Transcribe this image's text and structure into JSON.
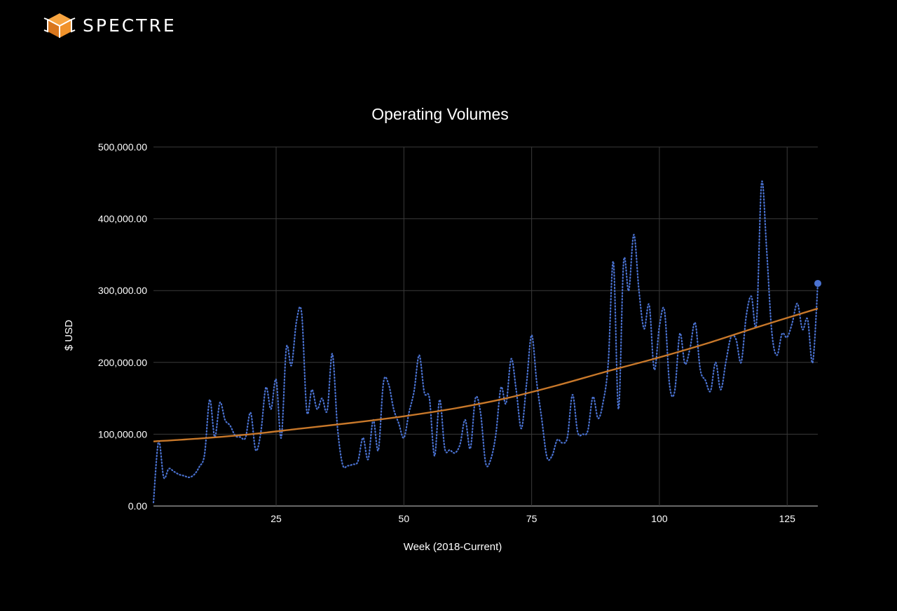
{
  "brand": {
    "name": "SPECTRE",
    "logo_icon": "spectre-cube-logo-icon",
    "logo_color": "#f0922b"
  },
  "colors": {
    "background": "#000000",
    "grid": "#3a3a3a",
    "text": "#ffffff",
    "series_weekly": "#4a72d1",
    "series_trend": "#c8782a"
  },
  "chart_data": {
    "type": "line",
    "title": "Operating Volumes",
    "xlabel": "Week (2018-Current)",
    "ylabel": "$ USD",
    "xlim": [
      1,
      131
    ],
    "ylim": [
      0,
      500000
    ],
    "x_ticks": [
      "25",
      "50",
      "75",
      "100",
      "125"
    ],
    "x_tick_values": [
      25,
      50,
      75,
      100,
      125
    ],
    "y_ticks": [
      "0.00",
      "100,000.00",
      "200,000.00",
      "300,000.00",
      "400,000.00",
      "500,000.00"
    ],
    "y_tick_values": [
      0,
      100000,
      200000,
      300000,
      400000,
      500000
    ],
    "grid": true,
    "legend": "none",
    "series": [
      {
        "style": "dotted",
        "points": [
          [
            1,
            5000
          ],
          [
            2,
            90000
          ],
          [
            3,
            40000
          ],
          [
            4,
            52000
          ],
          [
            5,
            48000
          ],
          [
            6,
            44000
          ],
          [
            7,
            42000
          ],
          [
            8,
            40000
          ],
          [
            9,
            44000
          ],
          [
            10,
            55000
          ],
          [
            11,
            72000
          ],
          [
            12,
            148000
          ],
          [
            13,
            96000
          ],
          [
            14,
            144000
          ],
          [
            15,
            120000
          ],
          [
            16,
            112000
          ],
          [
            17,
            98000
          ],
          [
            18,
            96000
          ],
          [
            19,
            95000
          ],
          [
            20,
            130000
          ],
          [
            21,
            78000
          ],
          [
            22,
            102000
          ],
          [
            23,
            165000
          ],
          [
            24,
            135000
          ],
          [
            25,
            176000
          ],
          [
            26,
            95000
          ],
          [
            27,
            220000
          ],
          [
            28,
            196000
          ],
          [
            29,
            258000
          ],
          [
            30,
            268000
          ],
          [
            31,
            132000
          ],
          [
            32,
            162000
          ],
          [
            33,
            135000
          ],
          [
            34,
            150000
          ],
          [
            35,
            133000
          ],
          [
            36,
            212000
          ],
          [
            37,
            110000
          ],
          [
            38,
            58000
          ],
          [
            39,
            56000
          ],
          [
            40,
            58000
          ],
          [
            41,
            62000
          ],
          [
            42,
            95000
          ],
          [
            43,
            65000
          ],
          [
            44,
            120000
          ],
          [
            45,
            78000
          ],
          [
            46,
            172000
          ],
          [
            47,
            170000
          ],
          [
            48,
            135000
          ],
          [
            49,
            115000
          ],
          [
            50,
            95000
          ],
          [
            51,
            130000
          ],
          [
            52,
            160000
          ],
          [
            53,
            210000
          ],
          [
            54,
            158000
          ],
          [
            55,
            150000
          ],
          [
            56,
            70000
          ],
          [
            57,
            148000
          ],
          [
            58,
            80000
          ],
          [
            59,
            78000
          ],
          [
            60,
            74000
          ],
          [
            61,
            86000
          ],
          [
            62,
            120000
          ],
          [
            63,
            80000
          ],
          [
            64,
            150000
          ],
          [
            65,
            130000
          ],
          [
            66,
            60000
          ],
          [
            67,
            65000
          ],
          [
            68,
            100000
          ],
          [
            69,
            165000
          ],
          [
            70,
            143000
          ],
          [
            71,
            205000
          ],
          [
            72,
            160000
          ],
          [
            73,
            108000
          ],
          [
            74,
            170000
          ],
          [
            75,
            238000
          ],
          [
            76,
            172000
          ],
          [
            77,
            120000
          ],
          [
            78,
            68000
          ],
          [
            79,
            70000
          ],
          [
            80,
            92000
          ],
          [
            81,
            88000
          ],
          [
            82,
            96000
          ],
          [
            83,
            155000
          ],
          [
            84,
            103000
          ],
          [
            85,
            100000
          ],
          [
            86,
            105000
          ],
          [
            87,
            152000
          ],
          [
            88,
            122000
          ],
          [
            89,
            145000
          ],
          [
            90,
            200000
          ],
          [
            91,
            340000
          ],
          [
            92,
            135000
          ],
          [
            93,
            340000
          ],
          [
            94,
            300000
          ],
          [
            95,
            378000
          ],
          [
            96,
            300000
          ],
          [
            97,
            247000
          ],
          [
            98,
            280000
          ],
          [
            99,
            190000
          ],
          [
            100,
            250000
          ],
          [
            101,
            272000
          ],
          [
            102,
            168000
          ],
          [
            103,
            160000
          ],
          [
            104,
            240000
          ],
          [
            105,
            198000
          ],
          [
            106,
            220000
          ],
          [
            107,
            255000
          ],
          [
            108,
            190000
          ],
          [
            109,
            175000
          ],
          [
            110,
            160000
          ],
          [
            111,
            200000
          ],
          [
            112,
            162000
          ],
          [
            113,
            200000
          ],
          [
            114,
            235000
          ],
          [
            115,
            232000
          ],
          [
            116,
            200000
          ],
          [
            117,
            265000
          ],
          [
            118,
            292000
          ],
          [
            119,
            255000
          ],
          [
            120,
            450000
          ],
          [
            121,
            355000
          ],
          [
            122,
            242000
          ],
          [
            123,
            210000
          ],
          [
            124,
            240000
          ],
          [
            125,
            235000
          ],
          [
            126,
            255000
          ],
          [
            127,
            282000
          ],
          [
            128,
            246000
          ],
          [
            129,
            260000
          ],
          [
            130,
            200000
          ],
          [
            131,
            310000
          ]
        ]
      },
      {
        "style": "solid",
        "points": [
          [
            1,
            90000
          ],
          [
            10,
            94000
          ],
          [
            20,
            100000
          ],
          [
            30,
            108000
          ],
          [
            40,
            116000
          ],
          [
            50,
            125000
          ],
          [
            60,
            136000
          ],
          [
            70,
            150000
          ],
          [
            80,
            168000
          ],
          [
            90,
            188000
          ],
          [
            100,
            207000
          ],
          [
            110,
            228000
          ],
          [
            120,
            251000
          ],
          [
            131,
            275000
          ]
        ]
      }
    ]
  }
}
